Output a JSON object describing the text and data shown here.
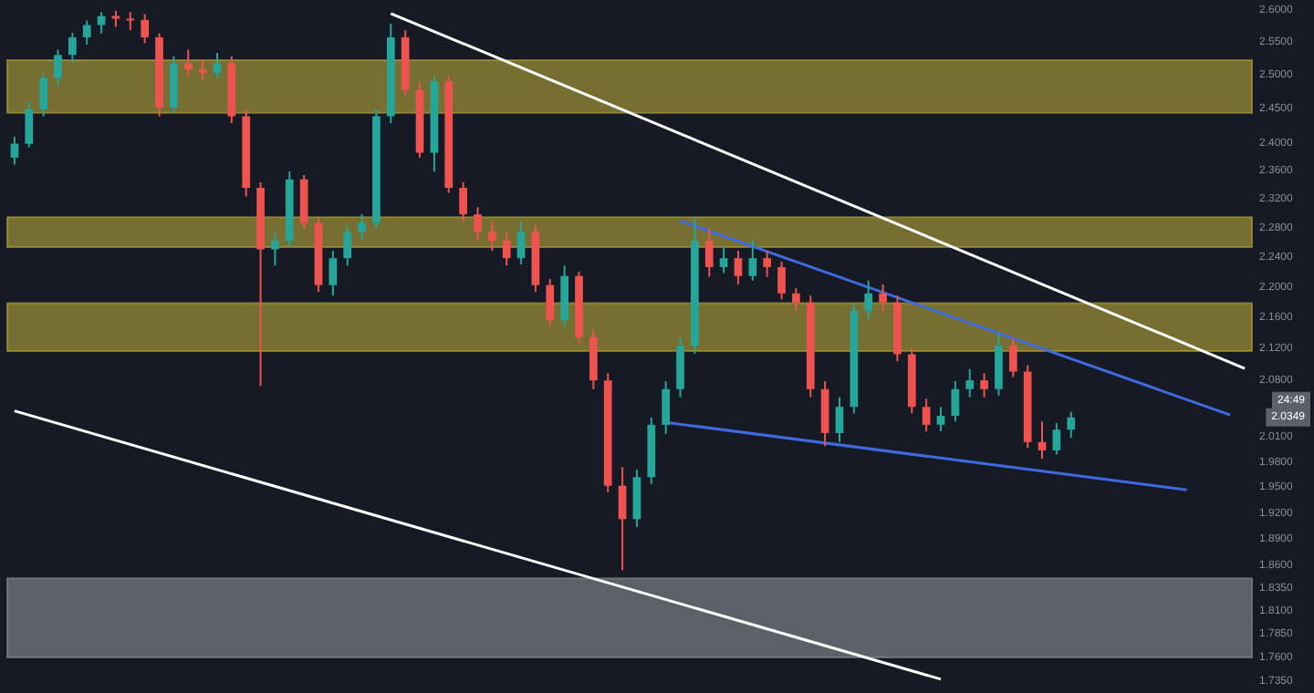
{
  "chart_data": {
    "type": "candlestick",
    "log": "y",
    "tick_labels": "y",
    "ylim": [
      1.735,
      2.6
    ],
    "categories": [
      null,
      null,
      null,
      null,
      null,
      null,
      null,
      null,
      null,
      null,
      null,
      null,
      null,
      null,
      null,
      null,
      null,
      null,
      null,
      null,
      null,
      null,
      null,
      null,
      null,
      null,
      null,
      null,
      null,
      null,
      null,
      null,
      null,
      null,
      null,
      null,
      null,
      null,
      null,
      null,
      null,
      null,
      null,
      null,
      null,
      null,
      null,
      null,
      null,
      null,
      null,
      null,
      null,
      null,
      null,
      null,
      null,
      null,
      null,
      null,
      null,
      null,
      null,
      null,
      null,
      null,
      null,
      null,
      null,
      null,
      null,
      null,
      null,
      null,
      null,
      null,
      null,
      null,
      null,
      null,
      null,
      null,
      null,
      null,
      null,
      null
    ],
    "yticks": [
      {
        "value": 2.6,
        "label": "2.6000"
      },
      {
        "value": 2.55,
        "label": "2.5500"
      },
      {
        "value": 2.5,
        "label": "2.5000"
      },
      {
        "value": 2.45,
        "label": "2.4500"
      },
      {
        "value": 2.4,
        "label": "2.4000"
      },
      {
        "value": 2.36,
        "label": "2.3600"
      },
      {
        "value": 2.32,
        "label": "2.3200"
      },
      {
        "value": 2.28,
        "label": "2.2800"
      },
      {
        "value": 2.24,
        "label": "2.2400"
      },
      {
        "value": 2.2,
        "label": "2.2000"
      },
      {
        "value": 2.16,
        "label": "2.1600"
      },
      {
        "value": 2.12,
        "label": "2.1200"
      },
      {
        "value": 2.08,
        "label": "2.0800"
      },
      {
        "value": 2.01,
        "label": "2.0100"
      },
      {
        "value": 1.98,
        "label": "1.9800"
      },
      {
        "value": 1.95,
        "label": "1.9500"
      },
      {
        "value": 1.92,
        "label": "1.9200"
      },
      {
        "value": 1.89,
        "label": "1.8900"
      },
      {
        "value": 1.86,
        "label": "1.8600"
      },
      {
        "value": 1.835,
        "label": "1.8350"
      },
      {
        "value": 1.81,
        "label": "1.8100"
      },
      {
        "value": 1.785,
        "label": "1.7850"
      },
      {
        "value": 1.76,
        "label": "1.7600"
      },
      {
        "value": 1.735,
        "label": "1.7350"
      }
    ],
    "ohlc": [
      [
        2.38,
        2.41,
        2.37,
        2.4
      ],
      [
        2.4,
        2.46,
        2.395,
        2.45
      ],
      [
        2.45,
        2.505,
        2.44,
        2.497
      ],
      [
        2.497,
        2.54,
        2.485,
        2.532
      ],
      [
        2.532,
        2.566,
        2.52,
        2.559
      ],
      [
        2.559,
        2.585,
        2.548,
        2.578
      ],
      [
        2.578,
        2.598,
        2.565,
        2.592
      ],
      [
        2.592,
        2.6,
        2.575,
        2.588
      ],
      [
        2.588,
        2.598,
        2.57,
        2.586
      ],
      [
        2.586,
        2.595,
        2.55,
        2.559
      ],
      [
        2.559,
        2.565,
        2.44,
        2.453
      ],
      [
        2.453,
        2.53,
        2.445,
        2.519
      ],
      [
        2.519,
        2.54,
        2.5,
        2.51
      ],
      [
        2.51,
        2.525,
        2.495,
        2.505
      ],
      [
        2.505,
        2.535,
        2.498,
        2.519
      ],
      [
        2.519,
        2.53,
        2.43,
        2.44
      ],
      [
        2.44,
        2.45,
        2.325,
        2.337
      ],
      [
        2.337,
        2.345,
        2.074,
        2.252
      ],
      [
        2.252,
        2.275,
        2.23,
        2.264
      ],
      [
        2.264,
        2.36,
        2.255,
        2.349
      ],
      [
        2.349,
        2.355,
        2.28,
        2.288
      ],
      [
        2.288,
        2.295,
        2.195,
        2.204
      ],
      [
        2.204,
        2.25,
        2.19,
        2.24
      ],
      [
        2.24,
        2.285,
        2.23,
        2.276
      ],
      [
        2.276,
        2.3,
        2.265,
        2.288
      ],
      [
        2.288,
        2.45,
        2.28,
        2.44
      ],
      [
        2.44,
        2.58,
        2.43,
        2.559
      ],
      [
        2.559,
        2.57,
        2.47,
        2.479
      ],
      [
        2.479,
        2.49,
        2.38,
        2.387
      ],
      [
        2.387,
        2.5,
        2.36,
        2.492
      ],
      [
        2.492,
        2.5,
        2.33,
        2.337
      ],
      [
        2.337,
        2.345,
        2.29,
        2.3
      ],
      [
        2.3,
        2.31,
        2.265,
        2.276
      ],
      [
        2.276,
        2.29,
        2.25,
        2.264
      ],
      [
        2.264,
        2.275,
        2.23,
        2.24
      ],
      [
        2.24,
        2.29,
        2.232,
        2.276
      ],
      [
        2.276,
        2.285,
        2.195,
        2.204
      ],
      [
        2.204,
        2.212,
        2.15,
        2.158
      ],
      [
        2.158,
        2.23,
        2.15,
        2.216
      ],
      [
        2.216,
        2.222,
        2.128,
        2.136
      ],
      [
        2.136,
        2.145,
        2.07,
        2.081
      ],
      [
        2.081,
        2.09,
        1.945,
        1.953
      ],
      [
        1.953,
        1.975,
        1.856,
        1.914
      ],
      [
        1.914,
        1.972,
        1.905,
        1.963
      ],
      [
        1.963,
        2.035,
        1.955,
        2.026
      ],
      [
        2.026,
        2.08,
        2.015,
        2.07
      ],
      [
        2.07,
        2.135,
        2.06,
        2.125
      ],
      [
        2.125,
        2.295,
        2.115,
        2.264
      ],
      [
        2.264,
        2.28,
        2.215,
        2.228
      ],
      [
        2.228,
        2.255,
        2.22,
        2.24
      ],
      [
        2.24,
        2.25,
        2.205,
        2.216
      ],
      [
        2.216,
        2.265,
        2.21,
        2.24
      ],
      [
        2.24,
        2.25,
        2.215,
        2.228
      ],
      [
        2.228,
        2.235,
        2.185,
        2.193
      ],
      [
        2.193,
        2.2,
        2.17,
        2.181
      ],
      [
        2.181,
        2.19,
        2.06,
        2.07
      ],
      [
        2.07,
        2.08,
        2.0,
        2.016
      ],
      [
        2.016,
        2.06,
        2.005,
        2.048
      ],
      [
        2.048,
        2.18,
        2.04,
        2.17
      ],
      [
        2.17,
        2.21,
        2.16,
        2.193
      ],
      [
        2.193,
        2.205,
        2.17,
        2.181
      ],
      [
        2.181,
        2.19,
        2.105,
        2.114
      ],
      [
        2.114,
        2.122,
        2.04,
        2.048
      ],
      [
        2.048,
        2.058,
        2.018,
        2.026
      ],
      [
        2.026,
        2.048,
        2.018,
        2.037
      ],
      [
        2.037,
        2.08,
        2.03,
        2.07
      ],
      [
        2.07,
        2.095,
        2.06,
        2.081
      ],
      [
        2.081,
        2.09,
        2.06,
        2.07
      ],
      [
        2.07,
        2.14,
        2.062,
        2.125
      ],
      [
        2.125,
        2.135,
        2.085,
        2.092
      ],
      [
        2.092,
        2.1,
        1.998,
        2.005
      ],
      [
        2.005,
        2.03,
        1.985,
        1.995
      ],
      [
        1.995,
        2.028,
        1.99,
        2.02
      ],
      [
        2.02,
        2.042,
        2.01,
        2.035
      ],
      null,
      null,
      null,
      null,
      null,
      null,
      null,
      null,
      null,
      null,
      null,
      null
    ],
    "series": [
      {
        "type": "line",
        "color": "#ffffff",
        "values": [
          null,
          null,
          null,
          null,
          null,
          null,
          null,
          null,
          null,
          null,
          null,
          null,
          null,
          null,
          null,
          null,
          null,
          null,
          null,
          null,
          null,
          null,
          null,
          null,
          null,
          null,
          2.596,
          null,
          null,
          null,
          null,
          null,
          null,
          null,
          null,
          null,
          null,
          null,
          null,
          null,
          null,
          null,
          null,
          null,
          null,
          null,
          null,
          null,
          null,
          null,
          null,
          null,
          null,
          null,
          null,
          null,
          null,
          null,
          null,
          null,
          null,
          null,
          null,
          null,
          null,
          null,
          null,
          null,
          null,
          null,
          null,
          null,
          null,
          null,
          null,
          null,
          null,
          null,
          null,
          null,
          null,
          null,
          null,
          null,
          null,
          2.096
        ]
      },
      {
        "type": "line",
        "color": "#ffffff",
        "values": [
          2.043,
          null,
          null,
          null,
          null,
          null,
          null,
          null,
          null,
          null,
          null,
          null,
          null,
          null,
          null,
          null,
          null,
          null,
          null,
          null,
          null,
          null,
          null,
          null,
          null,
          null,
          null,
          null,
          null,
          null,
          null,
          null,
          null,
          null,
          null,
          null,
          null,
          null,
          null,
          null,
          null,
          null,
          null,
          null,
          null,
          null,
          null,
          null,
          null,
          null,
          null,
          null,
          null,
          null,
          null,
          null,
          null,
          null,
          null,
          null,
          null,
          null,
          null,
          null,
          1.738,
          null,
          null,
          null,
          null,
          null,
          null,
          null,
          null,
          null,
          null,
          null,
          null,
          null,
          null,
          null,
          null,
          null,
          null,
          null,
          null,
          null
        ]
      },
      {
        "type": "line",
        "color": "#3f6ae0",
        "values": [
          null,
          null,
          null,
          null,
          null,
          null,
          null,
          null,
          null,
          null,
          null,
          null,
          null,
          null,
          null,
          null,
          null,
          null,
          null,
          null,
          null,
          null,
          null,
          null,
          null,
          null,
          null,
          null,
          null,
          null,
          null,
          null,
          null,
          null,
          null,
          null,
          null,
          null,
          null,
          null,
          null,
          null,
          null,
          null,
          null,
          null,
          2.291,
          null,
          null,
          null,
          null,
          null,
          null,
          null,
          null,
          null,
          null,
          null,
          null,
          null,
          null,
          null,
          null,
          null,
          null,
          null,
          null,
          null,
          null,
          null,
          null,
          null,
          null,
          null,
          null,
          null,
          null,
          null,
          null,
          null,
          null,
          null,
          null,
          null,
          2.038,
          null
        ]
      },
      {
        "type": "line",
        "color": "#3f6ae0",
        "values": [
          null,
          null,
          null,
          null,
          null,
          null,
          null,
          null,
          null,
          null,
          null,
          null,
          null,
          null,
          null,
          null,
          null,
          null,
          null,
          null,
          null,
          null,
          null,
          null,
          null,
          null,
          null,
          null,
          null,
          null,
          null,
          null,
          null,
          null,
          null,
          null,
          null,
          null,
          null,
          null,
          null,
          null,
          null,
          null,
          null,
          2.029,
          null,
          null,
          null,
          null,
          null,
          null,
          null,
          null,
          null,
          null,
          null,
          null,
          null,
          null,
          null,
          null,
          null,
          null,
          null,
          null,
          null,
          null,
          null,
          null,
          null,
          null,
          null,
          null,
          null,
          null,
          null,
          null,
          null,
          null,
          null,
          1.948,
          null,
          null,
          null,
          null
        ]
      }
    ],
    "bands": [
      {
        "axis": "y",
        "from": 2.445,
        "to": 2.524,
        "color": "#b8a93a"
      },
      {
        "axis": "y",
        "from": 2.255,
        "to": 2.296,
        "color": "#b8a93a"
      },
      {
        "axis": "y",
        "from": 2.118,
        "to": 2.18,
        "color": "#b8a93a"
      },
      {
        "axis": "y",
        "from": 1.761,
        "to": 1.847,
        "color": "#8c8f96"
      }
    ],
    "annotations": [
      "2.0349",
      "24:49"
    ]
  }
}
